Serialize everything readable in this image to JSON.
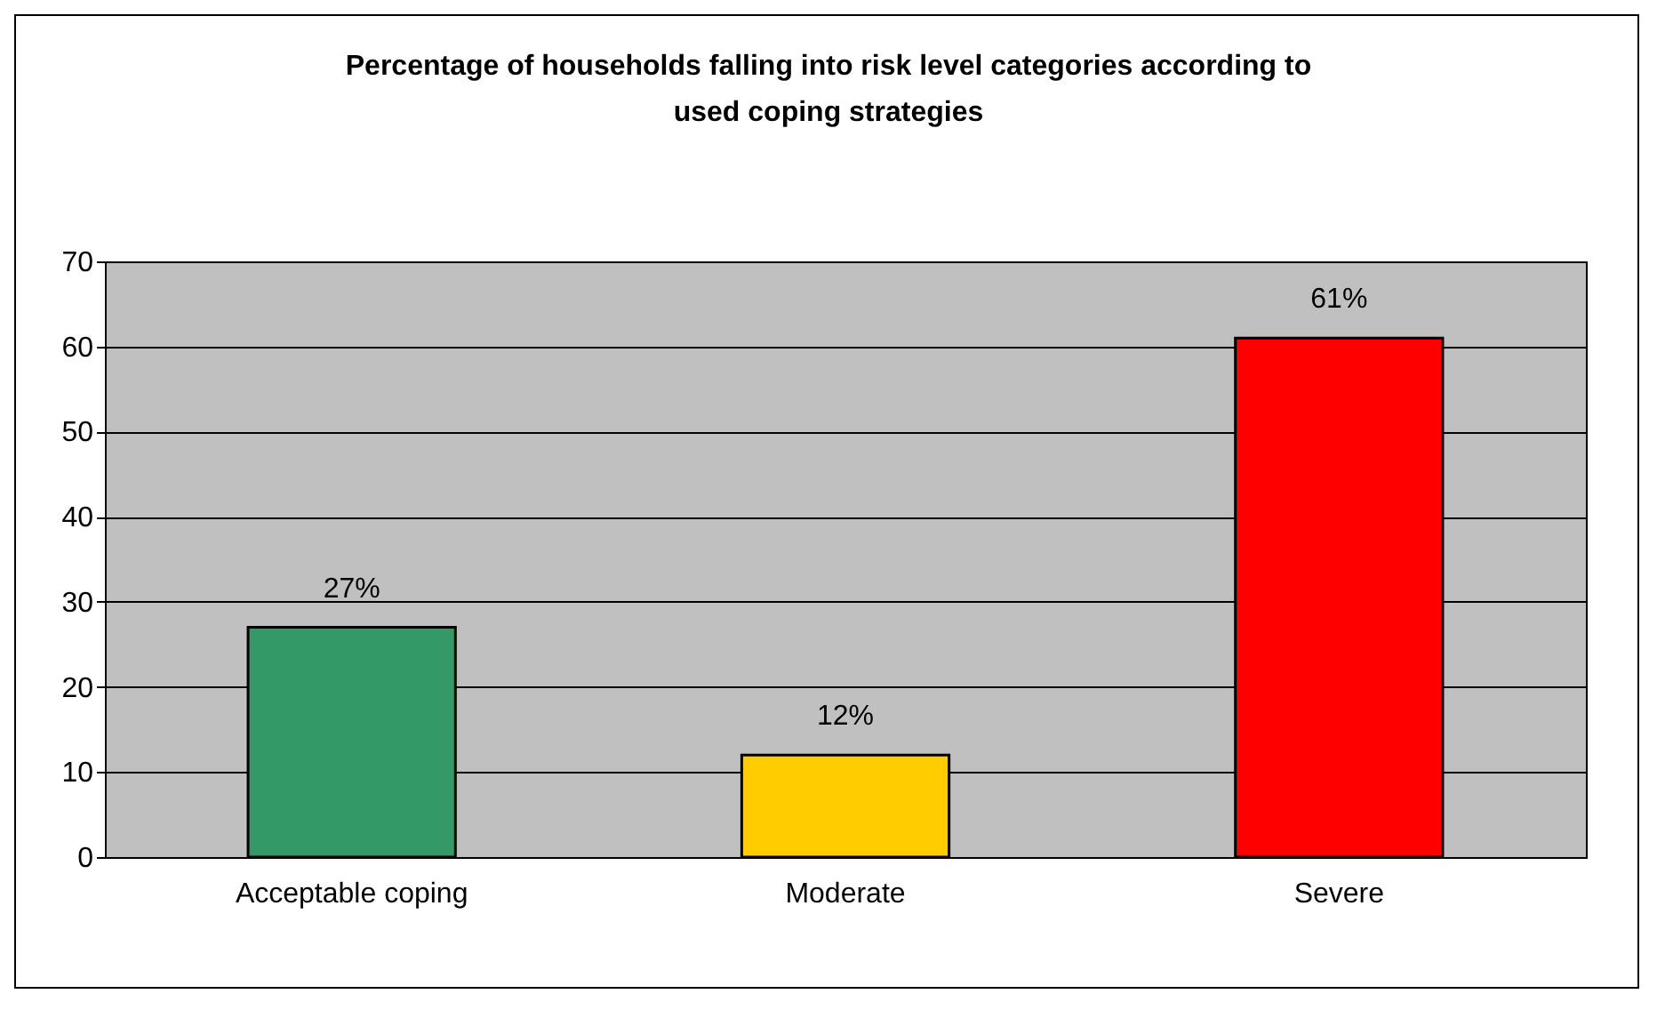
{
  "chart_data": {
    "type": "bar",
    "title": "Percentage of households falling into risk level categories according to used coping strategies",
    "categories": [
      "Acceptable coping",
      "Moderate",
      "Severe"
    ],
    "values": [
      27,
      12,
      61
    ],
    "colors": [
      "#339966",
      "#ffcc00",
      "#ff0000"
    ],
    "value_labels": [
      "27%",
      "12%",
      "61%"
    ],
    "ylim": [
      0,
      70
    ],
    "yticks": [
      0,
      10,
      20,
      30,
      40,
      50,
      60,
      70
    ],
    "grid": "y"
  }
}
